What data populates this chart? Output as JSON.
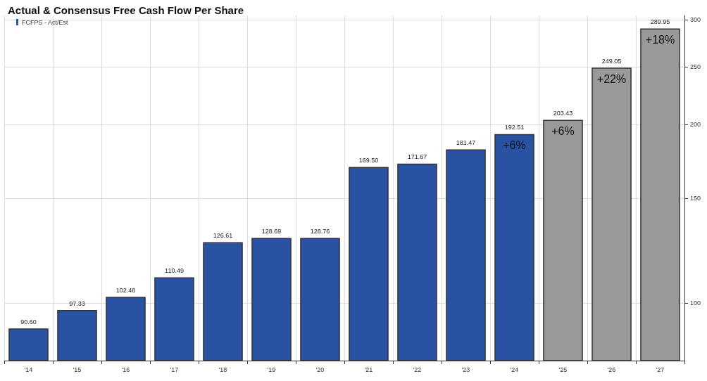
{
  "chart_data": {
    "type": "bar",
    "title": "Actual & Consensus Free Cash Flow Per Share",
    "categories": [
      "'14",
      "'15",
      "'16",
      "'17",
      "'18",
      "'19",
      "'20",
      "'21",
      "'22",
      "'23",
      "'24",
      "'25",
      "'26",
      "'27"
    ],
    "series": [
      {
        "name": "FCFPS - Act/Est",
        "values": [
          90.6,
          97.33,
          102.48,
          110.49,
          126.61,
          128.69,
          128.76,
          169.5,
          171.67,
          181.47,
          192.51,
          203.43,
          249.05,
          289.95
        ],
        "colors": [
          "#2a52a3",
          "#2a52a3",
          "#2a52a3",
          "#2a52a3",
          "#2a52a3",
          "#2a52a3",
          "#2a52a3",
          "#2a52a3",
          "#2a52a3",
          "#2a52a3",
          "#2a52a3",
          "#999999",
          "#999999",
          "#999999"
        ],
        "value_labels": [
          "90.60",
          "97.33",
          "102.48",
          "110.49",
          "126.61",
          "128.69",
          "128.76",
          "169.50",
          "171.67",
          "181.47",
          "192.51",
          "203.43",
          "249.05",
          "289.95"
        ]
      }
    ],
    "annotations": [
      {
        "text": "+6%",
        "x": "'24",
        "y": 192.51
      },
      {
        "text": "+6%",
        "x": "'25",
        "y": 203.43
      },
      {
        "text": "+22%",
        "x": "'26",
        "y": 249.05
      },
      {
        "text": "+18%",
        "x": "'27",
        "y": 289.95
      }
    ],
    "log": "y",
    "ylim": [
      80,
      305
    ],
    "yticks": [
      100,
      150,
      200,
      250,
      300
    ],
    "grid": true,
    "legend": "top left"
  }
}
